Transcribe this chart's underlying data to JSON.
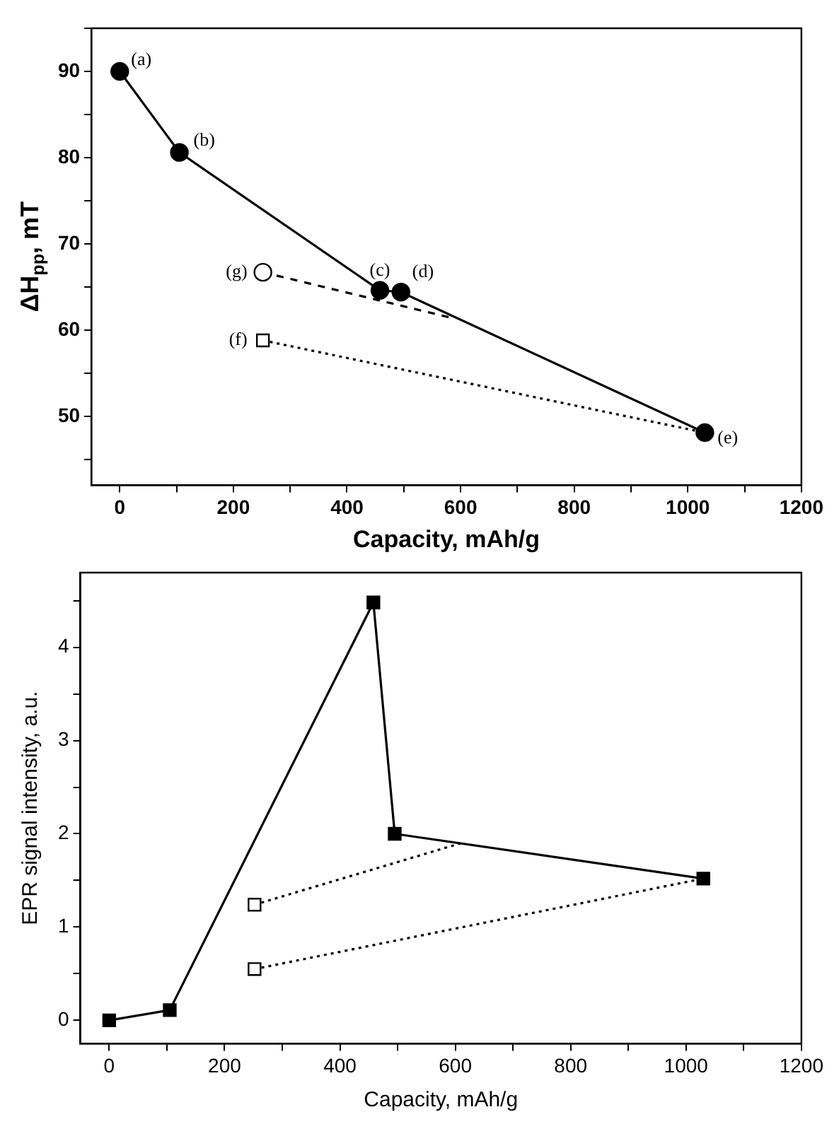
{
  "chart_data": [
    {
      "type": "line",
      "xlabel": "Capacity, mAh/g",
      "ylabel": "ΔH$_{pp}$, mT",
      "xlim": [
        -50,
        1200
      ],
      "ylim": [
        42,
        95
      ],
      "xticks": [
        0,
        {
          "value": 100,
          "label": null
        },
        200,
        {
          "value": 300,
          "label": null
        },
        400,
        {
          "value": 500,
          "label": null
        },
        600,
        {
          "value": 700,
          "label": null
        },
        800,
        {
          "value": 900,
          "label": null
        },
        1000,
        {
          "value": 1100,
          "label": null
        },
        1200
      ],
      "yticks": [
        {
          "value": 45,
          "label": null
        },
        50,
        {
          "value": 55,
          "label": null
        },
        60,
        {
          "value": 65,
          "label": null
        },
        70,
        {
          "value": 75,
          "label": null
        },
        80,
        {
          "value": 85,
          "label": null
        },
        90,
        {
          "value": 95,
          "label": null
        }
      ],
      "grid": false,
      "legend": false,
      "series": [
        {
          "color": "#000000",
          "marker": "circle",
          "line_style": "solid",
          "x": [
            0,
            105,
            458,
            495,
            1030
          ],
          "values": [
            90,
            80.6,
            64.6,
            64.4,
            48.1
          ]
        },
        {
          "color": "#000000",
          "marker": "circle",
          "line_style": "dashed",
          "x": [
            252,
            585
          ],
          "values": [
            66.7,
            61.4
          ]
        },
        {
          "color": "#000000",
          "marker": "square",
          "line_style": "dotted",
          "x": [
            252,
            1030
          ],
          "values": [
            58.8,
            48.1
          ]
        }
      ],
      "annotations": [
        {
          "text": "(a)",
          "x": 0,
          "y": 90
        },
        {
          "text": "(b)",
          "x": 105,
          "y": 80.6
        },
        {
          "text": "(c)",
          "x": 458,
          "y": 64.6
        },
        {
          "text": "(d)",
          "x": 495,
          "y": 64.4
        },
        {
          "text": "(e)",
          "x": 1030,
          "y": 48.1
        },
        {
          "text": "(g)",
          "x": 252,
          "y": 66.7
        },
        {
          "text": "(f)",
          "x": 252,
          "y": 58.8
        }
      ]
    },
    {
      "type": "line",
      "xlabel": "Capacity, mAh/g",
      "ylabel": "EPR signal intensity, a.u.",
      "xlim": [
        -50,
        1200
      ],
      "ylim": [
        -0.25,
        4.8
      ],
      "xticks": [
        0,
        {
          "value": 100,
          "label": null
        },
        200,
        {
          "value": 300,
          "label": null
        },
        400,
        {
          "value": 500,
          "label": null
        },
        600,
        {
          "value": 700,
          "label": null
        },
        800,
        {
          "value": 900,
          "label": null
        },
        1000,
        {
          "value": 1100,
          "label": null
        },
        1200
      ],
      "yticks": [
        0,
        {
          "value": 0.5,
          "label": null
        },
        1,
        {
          "value": 1.5,
          "label": null
        },
        2,
        {
          "value": 2.5,
          "label": null
        },
        3,
        {
          "value": 3.5,
          "label": null
        },
        4,
        {
          "value": 4.5,
          "label": null
        }
      ],
      "grid": false,
      "legend": false,
      "series": [
        {
          "color": "#000000",
          "marker": "square",
          "line_style": "solid",
          "x": [
            0,
            105,
            458,
            495,
            1030
          ],
          "values": [
            0,
            0.11,
            4.48,
            2.0,
            1.52
          ]
        },
        {
          "color": "#000000",
          "marker": "square",
          "line_style": "dotted",
          "x": [
            252,
            610
          ],
          "values": [
            1.24,
            1.9
          ]
        },
        {
          "color": "#000000",
          "marker": "square",
          "line_style": "dotted",
          "x": [
            252,
            1030
          ],
          "values": [
            0.55,
            1.52
          ]
        }
      ]
    }
  ]
}
